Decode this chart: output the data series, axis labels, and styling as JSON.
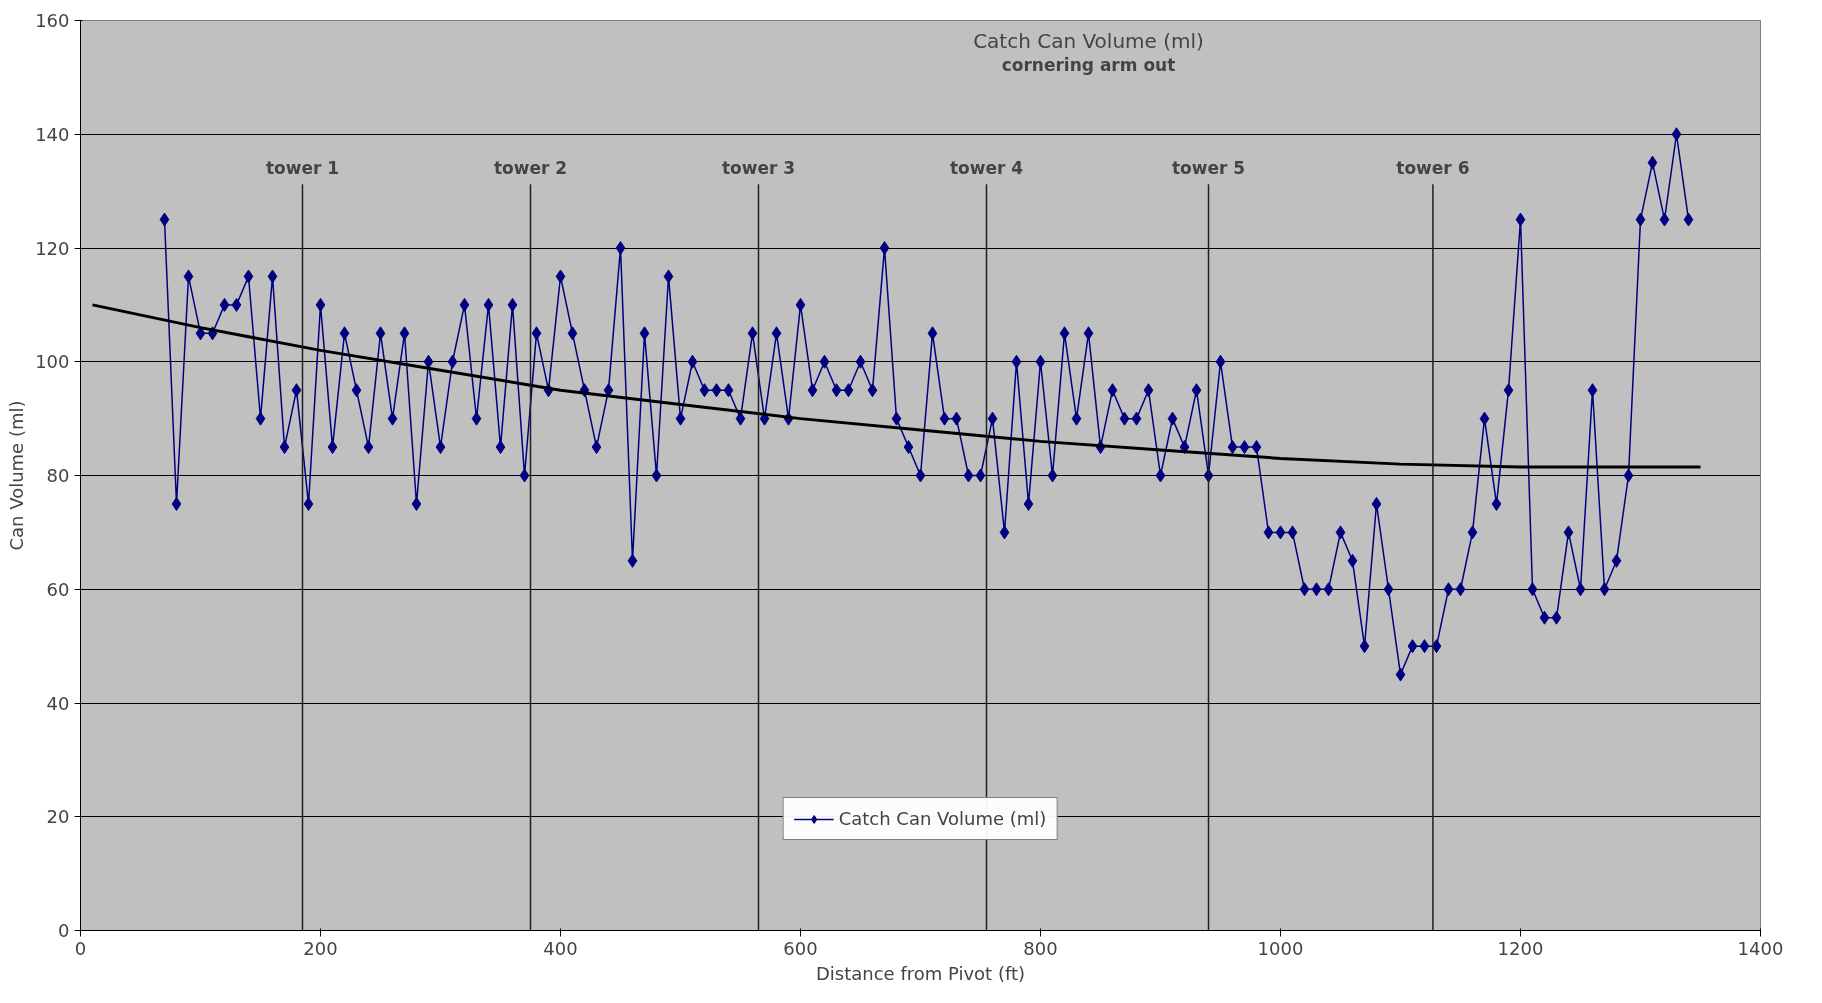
{
  "chart_data": {
    "type": "line",
    "title": "Catch Can Volume (ml)",
    "subtitle": "cornering arm out",
    "xlabel": "Distance from Pivot (ft)",
    "ylabel": "Can Volume (ml)",
    "x": [
      70,
      80,
      90,
      100,
      110,
      120,
      130,
      140,
      150,
      160,
      170,
      180,
      190,
      200,
      210,
      220,
      230,
      240,
      250,
      260,
      270,
      280,
      290,
      300,
      310,
      320,
      330,
      340,
      350,
      360,
      370,
      380,
      390,
      400,
      410,
      420,
      430,
      440,
      450,
      460,
      470,
      480,
      490,
      500,
      510,
      520,
      530,
      540,
      550,
      560,
      570,
      580,
      590,
      600,
      610,
      620,
      630,
      640,
      650,
      660,
      670,
      680,
      690,
      700,
      710,
      720,
      730,
      740,
      750,
      760,
      770,
      780,
      790,
      800,
      810,
      820,
      830,
      840,
      850,
      860,
      870,
      880,
      890,
      900,
      910,
      920,
      930,
      940,
      950,
      960,
      970,
      980,
      990,
      1000,
      1010,
      1020,
      1030,
      1040,
      1050,
      1060,
      1070,
      1080,
      1090,
      1100,
      1110,
      1120,
      1130,
      1140,
      1150,
      1160,
      1170,
      1180,
      1190,
      1200,
      1210,
      1220,
      1230,
      1240,
      1250,
      1260,
      1270,
      1280,
      1290,
      1300,
      1310,
      1320,
      1330,
      1340
    ],
    "series": [
      {
        "name": "Catch Can Volume (ml)",
        "color": "#000080",
        "marker": "diamond",
        "values": [
          125,
          75,
          115,
          105,
          105,
          110,
          110,
          115,
          90,
          115,
          85,
          95,
          75,
          110,
          85,
          105,
          95,
          85,
          105,
          90,
          105,
          75,
          100,
          85,
          100,
          110,
          90,
          110,
          85,
          110,
          80,
          105,
          95,
          115,
          105,
          95,
          85,
          95,
          120,
          65,
          105,
          80,
          115,
          90,
          100,
          95,
          95,
          95,
          90,
          105,
          90,
          105,
          90,
          110,
          95,
          100,
          95,
          95,
          100,
          95,
          120,
          90,
          85,
          80,
          105,
          90,
          90,
          80,
          80,
          90,
          70,
          100,
          75,
          100,
          80,
          105,
          90,
          105,
          85,
          95,
          90,
          90,
          95,
          80,
          90,
          85,
          95,
          80,
          100,
          85,
          85,
          85,
          70,
          70,
          70,
          60,
          60,
          60,
          70,
          65,
          50,
          75,
          60,
          45,
          50,
          50,
          50,
          60,
          60,
          70,
          90,
          75,
          95,
          125,
          60,
          55,
          55,
          70,
          60,
          95,
          60,
          65,
          80,
          125,
          135,
          125,
          140,
          125
        ]
      },
      {
        "type": "line",
        "color": "#000000",
        "marker": "none",
        "x": [
          10,
          100,
          200,
          300,
          400,
          500,
          600,
          700,
          800,
          900,
          1000,
          1100,
          1200,
          1350
        ],
        "values": [
          110,
          106,
          102,
          98.5,
          95,
          92.5,
          90,
          88,
          86,
          84.5,
          83,
          82,
          81.5,
          81.5
        ]
      }
    ],
    "xlim": [
      0,
      1400
    ],
    "xticks": [
      0,
      200,
      400,
      600,
      800,
      1000,
      1200,
      1400
    ],
    "ylim": [
      0,
      160
    ],
    "yticks": [
      0,
      20,
      40,
      60,
      80,
      100,
      120,
      140,
      160
    ],
    "grid": "y",
    "legend": "bottom",
    "ref_lines": [
      {
        "axis": "x",
        "value": 185,
        "label": "tower 1"
      },
      {
        "axis": "x",
        "value": 375,
        "label": "tower 2"
      },
      {
        "axis": "x",
        "value": 565,
        "label": "tower 3"
      },
      {
        "axis": "x",
        "value": 755,
        "label": "tower 4"
      },
      {
        "axis": "x",
        "value": 940,
        "label": "tower 5"
      },
      {
        "axis": "x",
        "value": 1127,
        "label": "tower 6"
      }
    ]
  }
}
